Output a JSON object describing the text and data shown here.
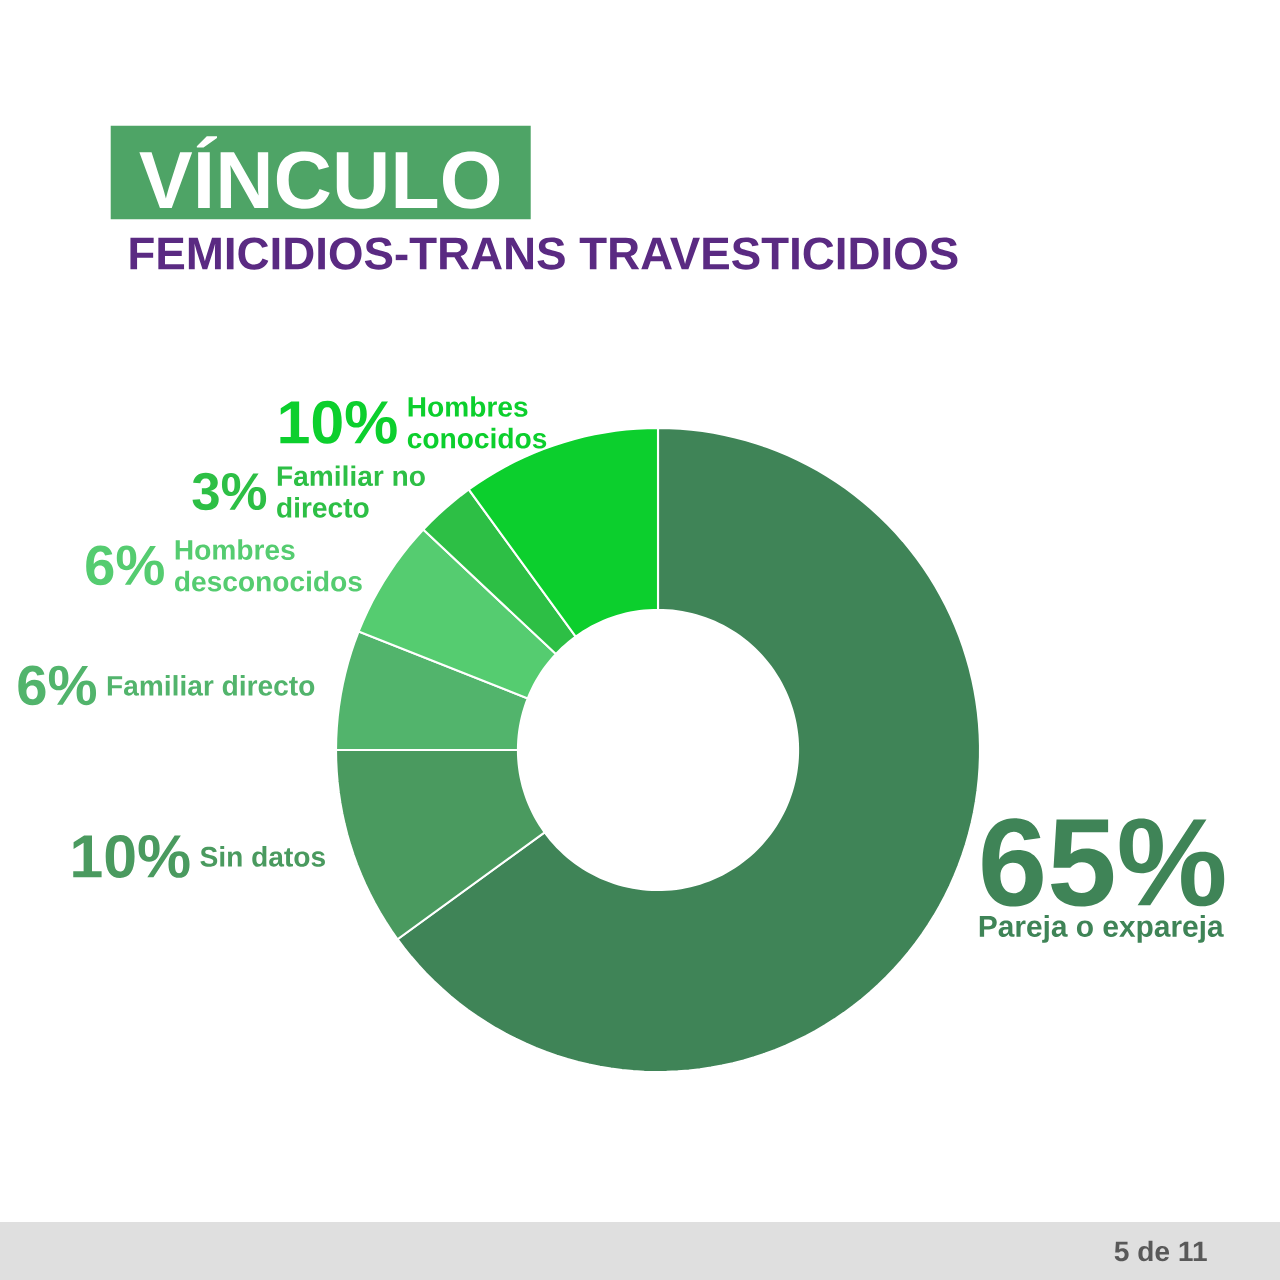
{
  "chart_data": {
    "type": "donut",
    "title": "VÍNCULO",
    "subtitle": "FEMICIDIOS-TRANS TRAVESTICIDIOS",
    "categories": [
      "Pareja o expareja",
      "Sin datos",
      "Familiar directo",
      "Hombres desconocidos",
      "Familiar no directo",
      "Hombres conocidos"
    ],
    "values": [
      65,
      10,
      6,
      6,
      3,
      10
    ],
    "value_labels": [
      "65%",
      "10%",
      "6%",
      "6%",
      "3%",
      "10%"
    ],
    "colors": [
      "#3f8457",
      "#4a9a5f",
      "#52b46c",
      "#55cc70",
      "#2dbf45",
      "#0ccf2d"
    ],
    "annotations": [
      "5 de 11"
    ]
  }
}
